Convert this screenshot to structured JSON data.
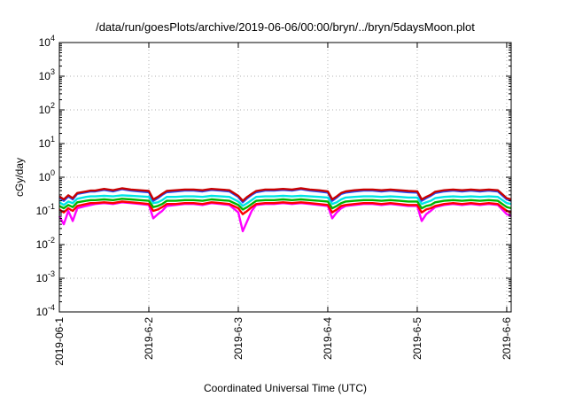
{
  "chart_data": {
    "type": "line",
    "title": "/data/run/goesPlots/archive/2019-06-06/00:00/bryn/../bryn/5daysMoon.plot",
    "xlabel": "Coordinated Universal Time (UTC)",
    "ylabel": "cGy/day",
    "yscale": "log",
    "ylim": [
      0.0001,
      10000
    ],
    "xlim_days": [
      0,
      5.05
    ],
    "x_ticks": [
      {
        "day": 0,
        "label": "2019-06-1"
      },
      {
        "day": 1,
        "label": "2019-6-2"
      },
      {
        "day": 2,
        "label": "2019-6-3"
      },
      {
        "day": 3,
        "label": "2019-6-4"
      },
      {
        "day": 4,
        "label": "2019-6-5"
      },
      {
        "day": 5,
        "label": "2019-6-6"
      }
    ],
    "y_ticks": [
      {
        "value": 0.0001,
        "base": "10",
        "exp": "-4"
      },
      {
        "value": 0.001,
        "base": "10",
        "exp": "-3"
      },
      {
        "value": 0.01,
        "base": "10",
        "exp": "-2"
      },
      {
        "value": 0.1,
        "base": "10",
        "exp": "-1"
      },
      {
        "value": 1,
        "base": "10",
        "exp": "0"
      },
      {
        "value": 10,
        "base": "10",
        "exp": "1"
      },
      {
        "value": 100,
        "base": "10",
        "exp": "2"
      },
      {
        "value": 1000,
        "base": "10",
        "exp": "3"
      },
      {
        "value": 10000,
        "base": "10",
        "exp": "4"
      }
    ],
    "grid": true,
    "legend": "none",
    "series": [
      {
        "color": "#ff00ff",
        "x": [
          0,
          0.05,
          0.1,
          0.15,
          0.2,
          0.3,
          0.35,
          0.4,
          0.5,
          0.6,
          0.7,
          0.8,
          0.9,
          1.0,
          1.05,
          1.1,
          1.15,
          1.2,
          1.3,
          1.4,
          1.5,
          1.6,
          1.7,
          1.8,
          1.9,
          2.0,
          2.05,
          2.1,
          2.15,
          2.2,
          2.3,
          2.4,
          2.5,
          2.6,
          2.7,
          2.8,
          2.9,
          3.0,
          3.05,
          3.1,
          3.15,
          3.2,
          3.3,
          3.4,
          3.5,
          3.6,
          3.7,
          3.8,
          3.9,
          4.0,
          4.05,
          4.1,
          4.15,
          4.2,
          4.3,
          4.4,
          4.5,
          4.6,
          4.7,
          4.8,
          4.9,
          5.0,
          5.05
        ],
        "y": [
          0.07,
          0.04,
          0.1,
          0.05,
          0.12,
          0.14,
          0.15,
          0.16,
          0.17,
          0.16,
          0.18,
          0.17,
          0.16,
          0.15,
          0.06,
          0.08,
          0.1,
          0.14,
          0.15,
          0.16,
          0.16,
          0.15,
          0.17,
          0.16,
          0.15,
          0.09,
          0.025,
          0.05,
          0.1,
          0.15,
          0.16,
          0.16,
          0.17,
          0.16,
          0.17,
          0.16,
          0.15,
          0.14,
          0.06,
          0.09,
          0.12,
          0.14,
          0.15,
          0.16,
          0.16,
          0.15,
          0.16,
          0.15,
          0.14,
          0.14,
          0.05,
          0.08,
          0.1,
          0.13,
          0.15,
          0.16,
          0.15,
          0.16,
          0.15,
          0.16,
          0.15,
          0.08,
          0.07
        ]
      },
      {
        "color": "#ff0000",
        "x": [
          0,
          0.05,
          0.1,
          0.15,
          0.2,
          0.3,
          0.35,
          0.4,
          0.5,
          0.6,
          0.7,
          0.8,
          0.9,
          1.0,
          1.05,
          1.1,
          1.15,
          1.2,
          1.3,
          1.4,
          1.5,
          1.6,
          1.7,
          1.8,
          1.9,
          2.0,
          2.05,
          2.1,
          2.15,
          2.2,
          2.3,
          2.4,
          2.5,
          2.6,
          2.7,
          2.8,
          2.9,
          3.0,
          3.05,
          3.1,
          3.15,
          3.2,
          3.3,
          3.4,
          3.5,
          3.6,
          3.7,
          3.8,
          3.9,
          4.0,
          4.05,
          4.1,
          4.15,
          4.2,
          4.3,
          4.4,
          4.5,
          4.6,
          4.7,
          4.8,
          4.9,
          5.0,
          5.05
        ],
        "y": [
          0.11,
          0.09,
          0.12,
          0.1,
          0.14,
          0.16,
          0.17,
          0.17,
          0.18,
          0.17,
          0.19,
          0.18,
          0.17,
          0.16,
          0.1,
          0.11,
          0.13,
          0.16,
          0.16,
          0.17,
          0.17,
          0.16,
          0.18,
          0.17,
          0.16,
          0.12,
          0.08,
          0.1,
          0.13,
          0.16,
          0.17,
          0.17,
          0.18,
          0.17,
          0.18,
          0.17,
          0.16,
          0.15,
          0.09,
          0.11,
          0.14,
          0.15,
          0.16,
          0.17,
          0.17,
          0.16,
          0.17,
          0.16,
          0.15,
          0.15,
          0.09,
          0.11,
          0.12,
          0.14,
          0.16,
          0.17,
          0.16,
          0.17,
          0.16,
          0.17,
          0.16,
          0.1,
          0.09
        ]
      },
      {
        "color": "#00b400",
        "x": [
          0,
          0.05,
          0.1,
          0.15,
          0.2,
          0.3,
          0.35,
          0.4,
          0.5,
          0.6,
          0.7,
          0.8,
          0.9,
          1.0,
          1.05,
          1.1,
          1.15,
          1.2,
          1.3,
          1.4,
          1.5,
          1.6,
          1.7,
          1.8,
          1.9,
          2.0,
          2.05,
          2.1,
          2.15,
          2.2,
          2.3,
          2.4,
          2.5,
          2.6,
          2.7,
          2.8,
          2.9,
          3.0,
          3.05,
          3.1,
          3.15,
          3.2,
          3.3,
          3.4,
          3.5,
          3.6,
          3.7,
          3.8,
          3.9,
          4.0,
          4.05,
          4.1,
          4.15,
          4.2,
          4.3,
          4.4,
          4.5,
          4.6,
          4.7,
          4.8,
          4.9,
          5.0,
          5.05
        ],
        "y": [
          0.14,
          0.12,
          0.15,
          0.13,
          0.18,
          0.2,
          0.21,
          0.21,
          0.22,
          0.21,
          0.23,
          0.22,
          0.21,
          0.2,
          0.13,
          0.14,
          0.16,
          0.2,
          0.2,
          0.21,
          0.21,
          0.2,
          0.22,
          0.21,
          0.2,
          0.15,
          0.11,
          0.13,
          0.16,
          0.2,
          0.21,
          0.21,
          0.22,
          0.21,
          0.22,
          0.21,
          0.2,
          0.19,
          0.12,
          0.14,
          0.17,
          0.19,
          0.2,
          0.21,
          0.21,
          0.2,
          0.21,
          0.2,
          0.19,
          0.19,
          0.12,
          0.14,
          0.15,
          0.18,
          0.2,
          0.21,
          0.2,
          0.21,
          0.2,
          0.21,
          0.2,
          0.13,
          0.12
        ]
      },
      {
        "color": "#00e5e5",
        "x": [
          0,
          0.05,
          0.1,
          0.15,
          0.2,
          0.3,
          0.35,
          0.4,
          0.5,
          0.6,
          0.7,
          0.8,
          0.9,
          1.0,
          1.05,
          1.1,
          1.15,
          1.2,
          1.3,
          1.4,
          1.5,
          1.6,
          1.7,
          1.8,
          1.9,
          2.0,
          2.05,
          2.1,
          2.15,
          2.2,
          2.3,
          2.4,
          2.5,
          2.6,
          2.7,
          2.8,
          2.9,
          3.0,
          3.05,
          3.1,
          3.15,
          3.2,
          3.3,
          3.4,
          3.5,
          3.6,
          3.7,
          3.8,
          3.9,
          4.0,
          4.05,
          4.1,
          4.15,
          4.2,
          4.3,
          4.4,
          4.5,
          4.6,
          4.7,
          4.8,
          4.9,
          5.0,
          5.05
        ],
        "y": [
          0.18,
          0.15,
          0.19,
          0.17,
          0.23,
          0.26,
          0.27,
          0.27,
          0.28,
          0.27,
          0.29,
          0.28,
          0.27,
          0.26,
          0.17,
          0.18,
          0.21,
          0.26,
          0.26,
          0.27,
          0.27,
          0.26,
          0.28,
          0.27,
          0.26,
          0.19,
          0.14,
          0.17,
          0.21,
          0.26,
          0.27,
          0.27,
          0.28,
          0.27,
          0.28,
          0.27,
          0.26,
          0.25,
          0.16,
          0.18,
          0.22,
          0.25,
          0.26,
          0.27,
          0.27,
          0.26,
          0.27,
          0.26,
          0.25,
          0.25,
          0.16,
          0.18,
          0.2,
          0.24,
          0.26,
          0.27,
          0.26,
          0.27,
          0.26,
          0.27,
          0.26,
          0.17,
          0.16
        ]
      },
      {
        "color": "#1e50ff",
        "x": [
          0,
          0.05,
          0.1,
          0.15,
          0.2,
          0.3,
          0.35,
          0.4,
          0.5,
          0.6,
          0.7,
          0.8,
          0.9,
          1.0,
          1.05,
          1.1,
          1.15,
          1.2,
          1.3,
          1.4,
          1.5,
          1.6,
          1.7,
          1.8,
          1.9,
          2.0,
          2.05,
          2.1,
          2.15,
          2.2,
          2.3,
          2.4,
          2.5,
          2.6,
          2.7,
          2.8,
          2.9,
          3.0,
          3.05,
          3.1,
          3.15,
          3.2,
          3.3,
          3.4,
          3.5,
          3.6,
          3.7,
          3.8,
          3.9,
          4.0,
          4.05,
          4.1,
          4.15,
          4.2,
          4.3,
          4.4,
          4.5,
          4.6,
          4.7,
          4.8,
          4.9,
          5.0,
          5.05
        ],
        "y": [
          0.25,
          0.2,
          0.27,
          0.22,
          0.32,
          0.36,
          0.38,
          0.38,
          0.42,
          0.38,
          0.44,
          0.4,
          0.38,
          0.36,
          0.2,
          0.24,
          0.3,
          0.36,
          0.38,
          0.4,
          0.4,
          0.38,
          0.42,
          0.4,
          0.38,
          0.26,
          0.18,
          0.24,
          0.3,
          0.36,
          0.4,
          0.4,
          0.42,
          0.4,
          0.44,
          0.4,
          0.38,
          0.35,
          0.2,
          0.25,
          0.32,
          0.35,
          0.38,
          0.4,
          0.4,
          0.38,
          0.4,
          0.38,
          0.36,
          0.35,
          0.2,
          0.24,
          0.28,
          0.34,
          0.38,
          0.4,
          0.38,
          0.4,
          0.38,
          0.4,
          0.38,
          0.22,
          0.2
        ]
      },
      {
        "color": "#c80000",
        "x": [
          0,
          0.05,
          0.1,
          0.15,
          0.2,
          0.3,
          0.35,
          0.4,
          0.5,
          0.6,
          0.7,
          0.8,
          0.9,
          1.0,
          1.05,
          1.1,
          1.15,
          1.2,
          1.3,
          1.4,
          1.5,
          1.6,
          1.7,
          1.8,
          1.9,
          2.0,
          2.05,
          2.1,
          2.15,
          2.2,
          2.3,
          2.4,
          2.5,
          2.6,
          2.7,
          2.8,
          2.9,
          3.0,
          3.05,
          3.1,
          3.15,
          3.2,
          3.3,
          3.4,
          3.5,
          3.6,
          3.7,
          3.8,
          3.9,
          4.0,
          4.05,
          4.1,
          4.15,
          4.2,
          4.3,
          4.4,
          4.5,
          4.6,
          4.7,
          4.8,
          4.9,
          5.0,
          5.05
        ],
        "y": [
          0.27,
          0.22,
          0.29,
          0.24,
          0.34,
          0.38,
          0.4,
          0.4,
          0.45,
          0.41,
          0.47,
          0.43,
          0.41,
          0.39,
          0.22,
          0.26,
          0.32,
          0.39,
          0.41,
          0.43,
          0.43,
          0.41,
          0.45,
          0.43,
          0.41,
          0.28,
          0.2,
          0.26,
          0.32,
          0.39,
          0.43,
          0.43,
          0.45,
          0.43,
          0.47,
          0.43,
          0.41,
          0.38,
          0.22,
          0.27,
          0.34,
          0.38,
          0.41,
          0.43,
          0.43,
          0.41,
          0.43,
          0.41,
          0.39,
          0.38,
          0.22,
          0.26,
          0.3,
          0.37,
          0.41,
          0.43,
          0.41,
          0.43,
          0.41,
          0.43,
          0.41,
          0.24,
          0.22
        ]
      }
    ]
  }
}
